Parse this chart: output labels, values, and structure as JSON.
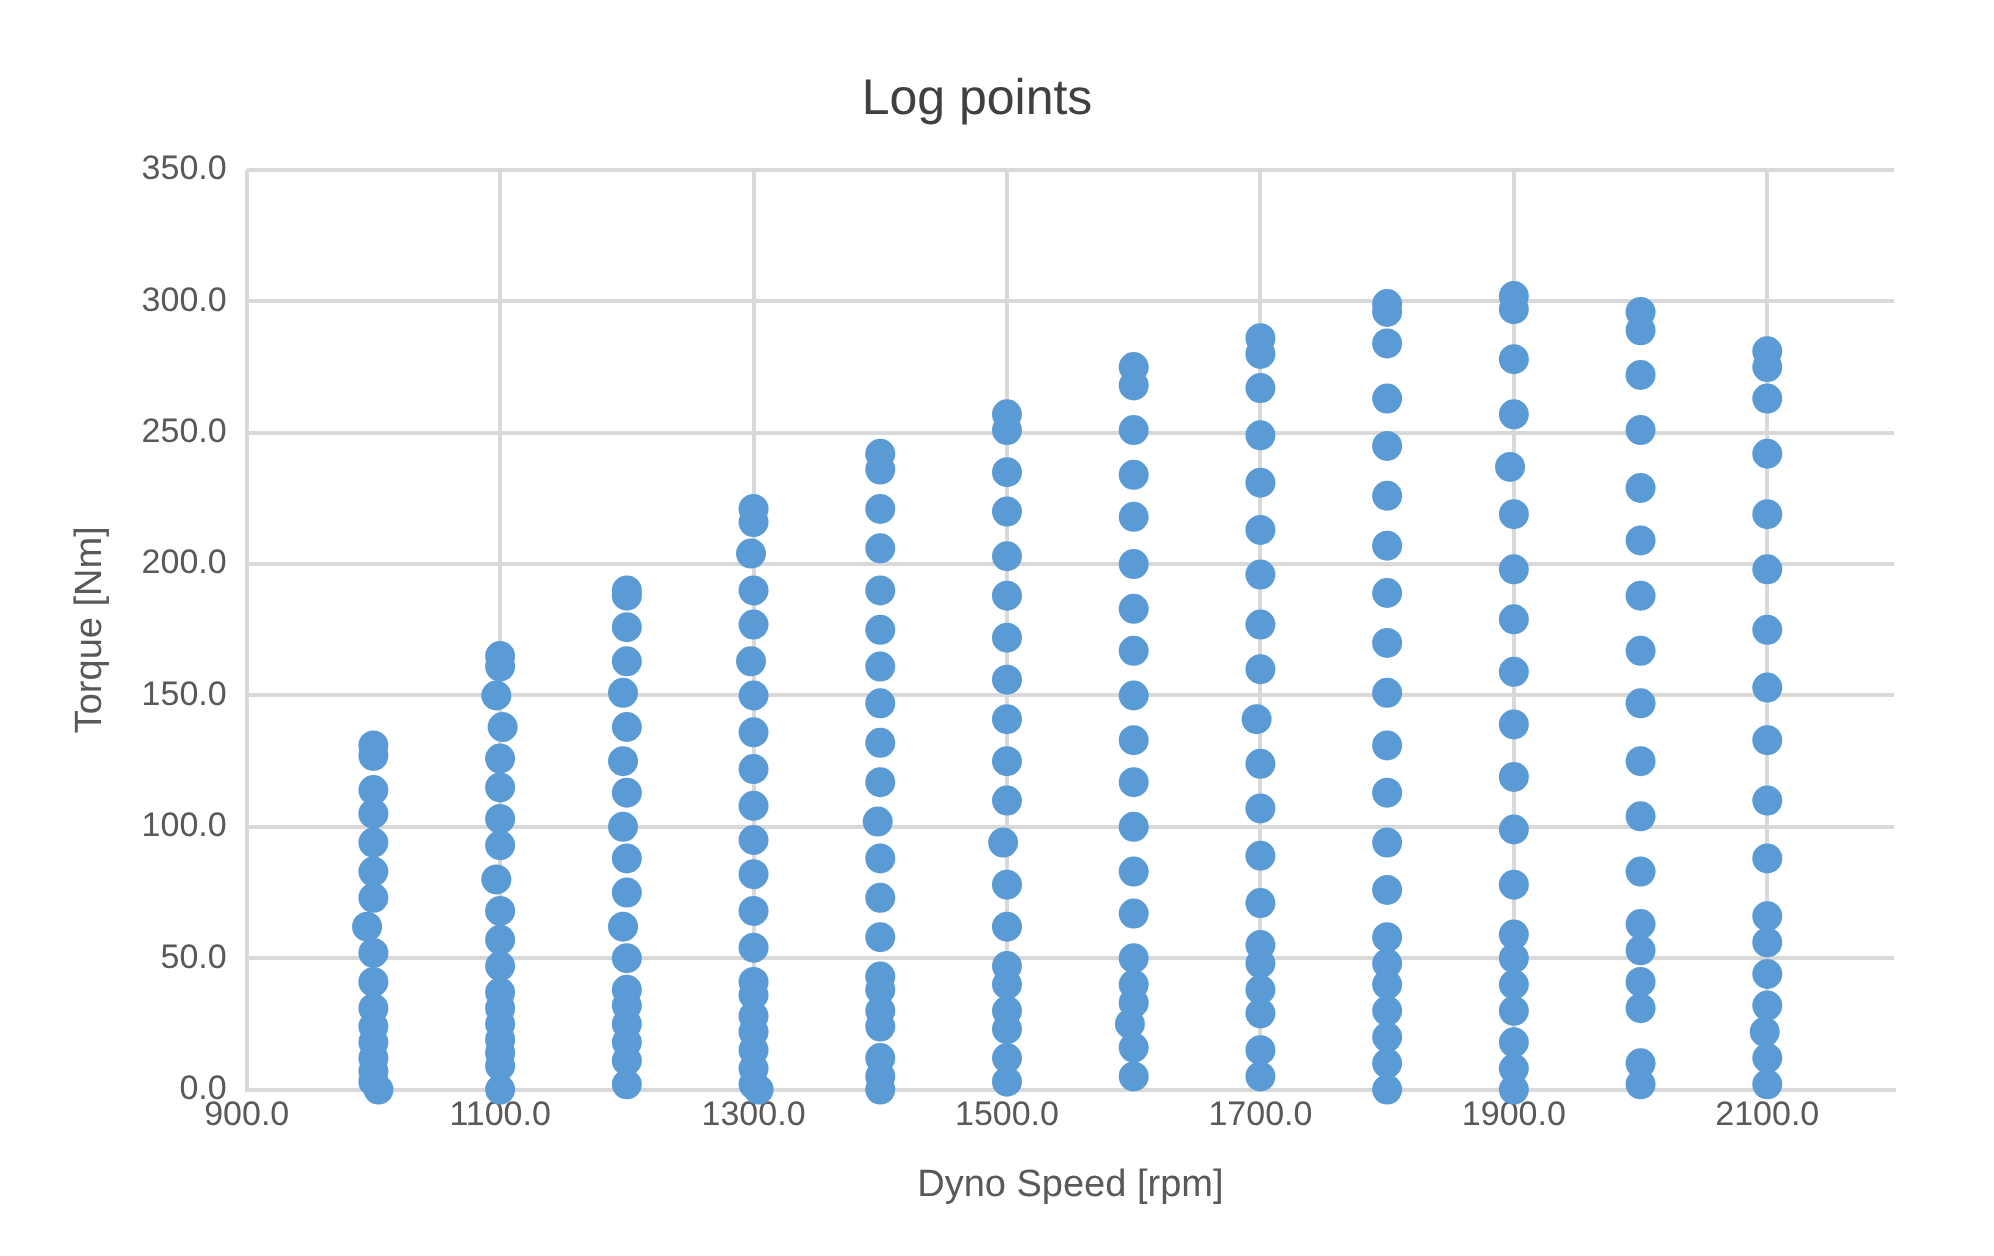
{
  "chart_data": {
    "type": "scatter",
    "title": "Log points",
    "xlabel": "Dyno Speed [rpm]",
    "ylabel": "Torque [Nm]",
    "marker": "circle",
    "grid": true,
    "legend": false,
    "xlim": [
      900,
      2200
    ],
    "ylim": [
      0,
      350
    ],
    "xticks": [
      {
        "value": 900,
        "label": "900.0"
      },
      {
        "value": 1100,
        "label": "1100.0"
      },
      {
        "value": 1300,
        "label": "1300.0"
      },
      {
        "value": 1500,
        "label": "1500.0"
      },
      {
        "value": 1700,
        "label": "1700.0"
      },
      {
        "value": 1900,
        "label": "1900.0"
      },
      {
        "value": 2100,
        "label": "2100.0"
      }
    ],
    "yticks": [
      {
        "value": 0,
        "label": "0.0"
      },
      {
        "value": 50,
        "label": "50.0"
      },
      {
        "value": 100,
        "label": "100.0"
      },
      {
        "value": 150,
        "label": "150.0"
      },
      {
        "value": 200,
        "label": "200.0"
      },
      {
        "value": 250,
        "label": "250.0"
      },
      {
        "value": 300,
        "label": "300.0"
      },
      {
        "value": 350,
        "label": "350.0"
      }
    ],
    "series": [
      {
        "color": "#5b9bd5",
        "x": [
          1000,
          1000,
          1000,
          1000,
          1000,
          1000,
          1000,
          995,
          1000,
          1000,
          1000,
          1000,
          1000,
          1000,
          1000,
          1000,
          1004,
          1100,
          1100,
          1097,
          1102,
          1100,
          1100,
          1100,
          1100,
          1097,
          1100,
          1100,
          1100,
          1100,
          1100,
          1100,
          1100,
          1100,
          1100,
          1100,
          1200,
          1200,
          1200,
          1200,
          1197,
          1200,
          1197,
          1200,
          1197,
          1200,
          1200,
          1197,
          1200,
          1200,
          1200,
          1200,
          1200,
          1200,
          1200,
          1300,
          1300,
          1298,
          1300,
          1300,
          1298,
          1300,
          1300,
          1300,
          1300,
          1300,
          1300,
          1300,
          1300,
          1300,
          1300,
          1300,
          1300,
          1300,
          1300,
          1300,
          1304,
          1400,
          1400,
          1400,
          1400,
          1400,
          1400,
          1400,
          1400,
          1400,
          1400,
          1398,
          1400,
          1400,
          1400,
          1400,
          1400,
          1400,
          1400,
          1400,
          1400,
          1400,
          1500,
          1500,
          1500,
          1500,
          1500,
          1500,
          1500,
          1500,
          1500,
          1500,
          1500,
          1497,
          1500,
          1500,
          1500,
          1500,
          1500,
          1500,
          1500,
          1500,
          1600,
          1600,
          1600,
          1600,
          1600,
          1600,
          1600,
          1600,
          1600,
          1600,
          1600,
          1600,
          1600,
          1600,
          1600,
          1600,
          1600,
          1597,
          1600,
          1600,
          1700,
          1700,
          1700,
          1700,
          1700,
          1700,
          1700,
          1700,
          1700,
          1697,
          1700,
          1700,
          1700,
          1700,
          1700,
          1700,
          1700,
          1700,
          1700,
          1700,
          1800,
          1800,
          1800,
          1800,
          1800,
          1800,
          1800,
          1800,
          1800,
          1800,
          1800,
          1800,
          1800,
          1800,
          1800,
          1800,
          1800,
          1800,
          1800,
          1800,
          1800,
          1900,
          1900,
          1900,
          1900,
          1897,
          1900,
          1900,
          1900,
          1900,
          1900,
          1900,
          1900,
          1900,
          1900,
          1900,
          1900,
          1900,
          1900,
          1900,
          1900,
          2000,
          2000,
          2000,
          2000,
          2000,
          2000,
          2000,
          2000,
          2000,
          2000,
          2000,
          2000,
          2000,
          2000,
          2000,
          2000,
          2000,
          2000,
          2100,
          2100,
          2100,
          2100,
          2100,
          2100,
          2100,
          2100,
          2100,
          2100,
          2100,
          2100,
          2100,
          2100,
          2100,
          2098,
          2100,
          2100
        ],
        "values": [
          131,
          127,
          114,
          105,
          94,
          83,
          73,
          62,
          52,
          41,
          31,
          24,
          18,
          12,
          7,
          3,
          0,
          165,
          161,
          150,
          138,
          126,
          115,
          103,
          93,
          80,
          68,
          57,
          47,
          37,
          31,
          25,
          19,
          14,
          9,
          0,
          190,
          188,
          176,
          163,
          151,
          138,
          125,
          113,
          100,
          88,
          75,
          62,
          50,
          38,
          32,
          25,
          18,
          11,
          2,
          221,
          216,
          204,
          190,
          177,
          163,
          150,
          136,
          122,
          108,
          95,
          82,
          68,
          54,
          41,
          36,
          28,
          22,
          15,
          8,
          2,
          0,
          242,
          236,
          221,
          206,
          190,
          175,
          161,
          147,
          132,
          117,
          102,
          88,
          73,
          58,
          43,
          38,
          30,
          24,
          12,
          5,
          0,
          257,
          251,
          235,
          220,
          203,
          188,
          172,
          156,
          141,
          125,
          110,
          94,
          78,
          62,
          47,
          40,
          30,
          23,
          12,
          3,
          275,
          268,
          251,
          234,
          218,
          200,
          183,
          167,
          150,
          133,
          117,
          100,
          83,
          67,
          50,
          40,
          33,
          25,
          16,
          5,
          286,
          280,
          267,
          249,
          231,
          213,
          196,
          177,
          160,
          141,
          124,
          107,
          89,
          71,
          55,
          48,
          38,
          29,
          15,
          5,
          299,
          296,
          284,
          263,
          245,
          226,
          207,
          189,
          170,
          151,
          131,
          113,
          94,
          76,
          58,
          48,
          40,
          30,
          20,
          10,
          0,
          302,
          297,
          278,
          257,
          237,
          219,
          198,
          179,
          159,
          139,
          119,
          99,
          78,
          59,
          50,
          40,
          30,
          18,
          8,
          0,
          296,
          289,
          272,
          251,
          229,
          209,
          188,
          167,
          147,
          125,
          104,
          83,
          63,
          53,
          41,
          31,
          10,
          2,
          281,
          275,
          263,
          242,
          219,
          198,
          175,
          153,
          133,
          110,
          88,
          66,
          56,
          44,
          32,
          22,
          12,
          2
        ]
      }
    ]
  }
}
